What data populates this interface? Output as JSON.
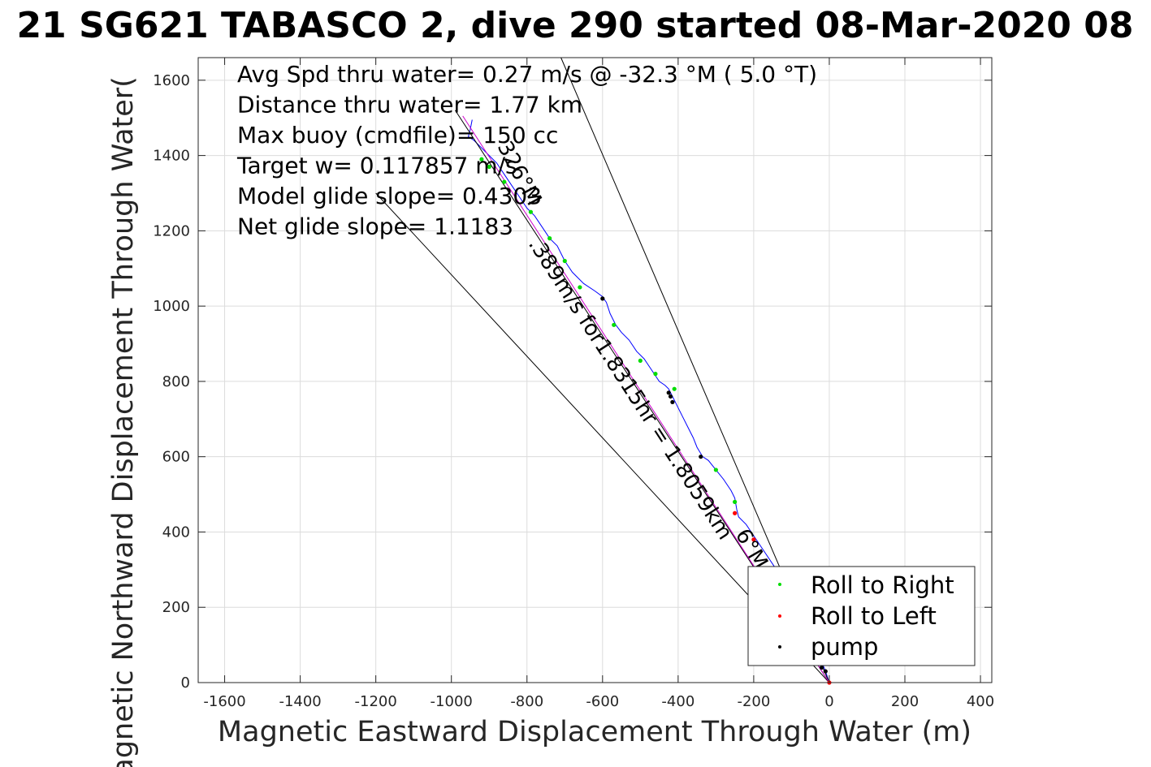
{
  "chart_data": {
    "type": "line",
    "title": "21 SG621 TABASCO 2, dive 290 started 08-Mar-2020 08",
    "xlabel": "Magnetic Eastward Displacement Through Water (m)",
    "ylabel": "Magnetic Northward Displacement Through Water(",
    "xlim": [
      -1670,
      430
    ],
    "ylim": [
      0,
      1660
    ],
    "x_ticks": [
      -1600,
      -1400,
      -1200,
      -1000,
      -800,
      -600,
      -400,
      -200,
      0,
      200,
      400
    ],
    "y_ticks": [
      0,
      200,
      400,
      600,
      800,
      1000,
      1200,
      1400,
      1600
    ],
    "x_tick_labels": [
      "-1600",
      "-1400",
      "-1200",
      "-1000",
      "-800",
      "-600",
      "-400",
      "-200",
      "0",
      "200",
      "400"
    ],
    "y_tick_labels": [
      "0",
      "200",
      "400",
      "600",
      "800",
      "1000",
      "1200",
      "1400",
      "1600"
    ],
    "grid": true,
    "annotations": [
      "Avg Spd thru water=  0.27 m/s @ -32.3 °M (  5.0 °T)",
      "Distance thru water=  1.77 km",
      "Max buoy (cmdfile)= 150 cc",
      "Target w= 0.117857 m/s",
      "Model glide slope= 0.4303",
      "Net glide slope= 1.1183"
    ],
    "line_labels": [
      "326°M",
      ".389m/s for1.8315hr = 1.8059km",
      "6°M"
    ],
    "legend": {
      "placement": "bottom-right",
      "entries": [
        {
          "label": "Roll to Right",
          "color": "#00dd00"
        },
        {
          "label": "Roll to Left",
          "color": "#ff0000"
        },
        {
          "label": "pump",
          "color": "#000000"
        }
      ]
    },
    "series": [
      {
        "kind": "track",
        "color": "#0000ff",
        "x": [
          0,
          -10,
          -30,
          -60,
          -100,
          -140,
          -180,
          -200,
          -220,
          -240,
          -245,
          -250,
          -260,
          -280,
          -300,
          -320,
          -335,
          -350,
          -360,
          -375,
          -390,
          -405,
          -415,
          -425,
          -435,
          -450,
          -470,
          -490,
          -510,
          -530,
          -550,
          -565,
          -580,
          -590,
          -597,
          -600,
          -620,
          -650,
          -680,
          -700,
          -720,
          -740,
          -760,
          -780,
          -800,
          -820,
          -840,
          -860,
          -880,
          -900,
          -920,
          -940,
          -955,
          -950,
          -945
        ],
        "y": [
          0,
          30,
          80,
          150,
          230,
          300,
          360,
          390,
          420,
          440,
          460,
          490,
          510,
          540,
          565,
          590,
          600,
          625,
          650,
          680,
          710,
          740,
          760,
          780,
          790,
          800,
          830,
          860,
          880,
          910,
          930,
          950,
          980,
          1010,
          1020,
          1025,
          1040,
          1060,
          1090,
          1120,
          1160,
          1180,
          1210,
          1240,
          1260,
          1290,
          1320,
          1350,
          1380,
          1400,
          1420,
          1440,
          1450,
          1470,
          1495
        ]
      },
      {
        "kind": "heading-line",
        "color": "#000000",
        "x": [
          0,
          -710
        ],
        "y": [
          0,
          1660
        ]
      },
      {
        "kind": "heading-line",
        "color": "#000000",
        "x": [
          0,
          -1200
        ],
        "y": [
          0,
          1300
        ]
      },
      {
        "kind": "course-line",
        "color": "#000000",
        "x": [
          0,
          -990
        ],
        "y": [
          0,
          1520
        ]
      },
      {
        "kind": "course-line-offset",
        "color": "#cc00cc",
        "x": [
          0,
          -970
        ],
        "y": [
          0,
          1505
        ]
      },
      {
        "kind": "markers",
        "name": "Roll to Right",
        "color": "#00dd00",
        "x": [
          -250,
          -300,
          -410,
          -460,
          -500,
          -570,
          -660,
          -700,
          -740,
          -790,
          -860,
          -900,
          -920
        ],
        "y": [
          480,
          565,
          780,
          820,
          855,
          950,
          1050,
          1120,
          1180,
          1250,
          1330,
          1370,
          1390
        ]
      },
      {
        "kind": "markers",
        "name": "Roll to Left",
        "color": "#ff0000",
        "x": [
          0,
          -200,
          -250
        ],
        "y": [
          0,
          380,
          450
        ]
      },
      {
        "kind": "markers",
        "name": "pump",
        "color": "#000000",
        "x": [
          -600,
          -425,
          -420,
          -415,
          -340,
          -20,
          -10
        ],
        "y": [
          1020,
          770,
          760,
          745,
          600,
          40,
          30
        ]
      }
    ]
  }
}
